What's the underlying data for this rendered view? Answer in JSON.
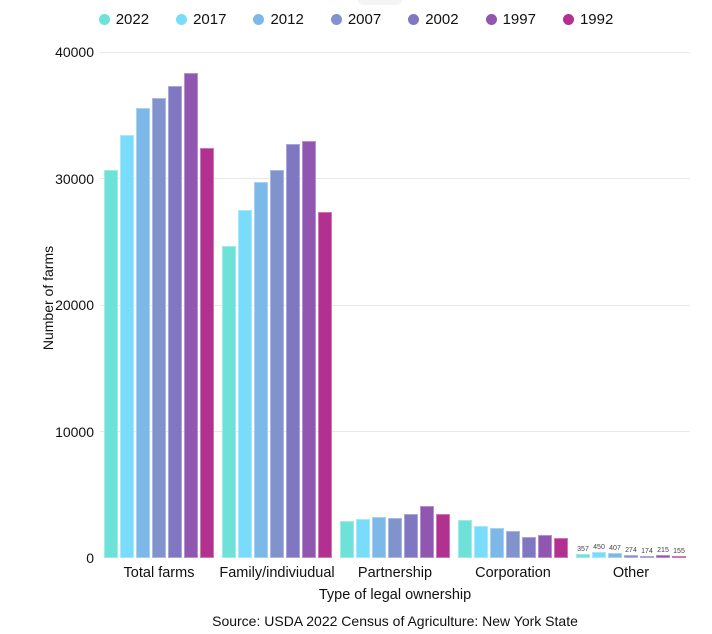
{
  "chart_data": {
    "type": "bar",
    "categories": [
      "Total farms",
      "Family/indiviudual",
      "Partnership",
      "Corporation",
      "Other"
    ],
    "series": [
      {
        "name": "2022",
        "color": "#6EE2D8",
        "values": [
          30650,
          24650,
          2900,
          3000,
          357
        ]
      },
      {
        "name": "2017",
        "color": "#79DCFB",
        "values": [
          33450,
          27550,
          3050,
          2550,
          450
        ]
      },
      {
        "name": "2012",
        "color": "#7DB9E8",
        "values": [
          35550,
          29750,
          3250,
          2400,
          407
        ]
      },
      {
        "name": "2007",
        "color": "#8093CD",
        "values": [
          36400,
          30700,
          3150,
          2150,
          274
        ]
      },
      {
        "name": "2002",
        "color": "#8077C2",
        "values": [
          37350,
          32750,
          3500,
          1650,
          174
        ]
      },
      {
        "name": "1997",
        "color": "#9156AF",
        "values": [
          38350,
          32950,
          4150,
          1850,
          215
        ]
      },
      {
        "name": "1992",
        "color": "#B23090",
        "values": [
          32400,
          27350,
          3450,
          1550,
          155
        ]
      }
    ],
    "data_labels": {
      "category_index": 4,
      "values": [
        357,
        450,
        407,
        274,
        174,
        215,
        155
      ]
    },
    "xlabel": "Type of legal ownership",
    "ylabel": "Number of farms",
    "yticks": [
      0,
      10000,
      20000,
      30000,
      40000
    ],
    "ylim": [
      0,
      40000
    ],
    "grid": true,
    "legend_position": "top",
    "gridline_color": "#e8e8e8"
  },
  "source": {
    "text": "Source: USDA 2022 Census of Agriculture: New York State"
  }
}
